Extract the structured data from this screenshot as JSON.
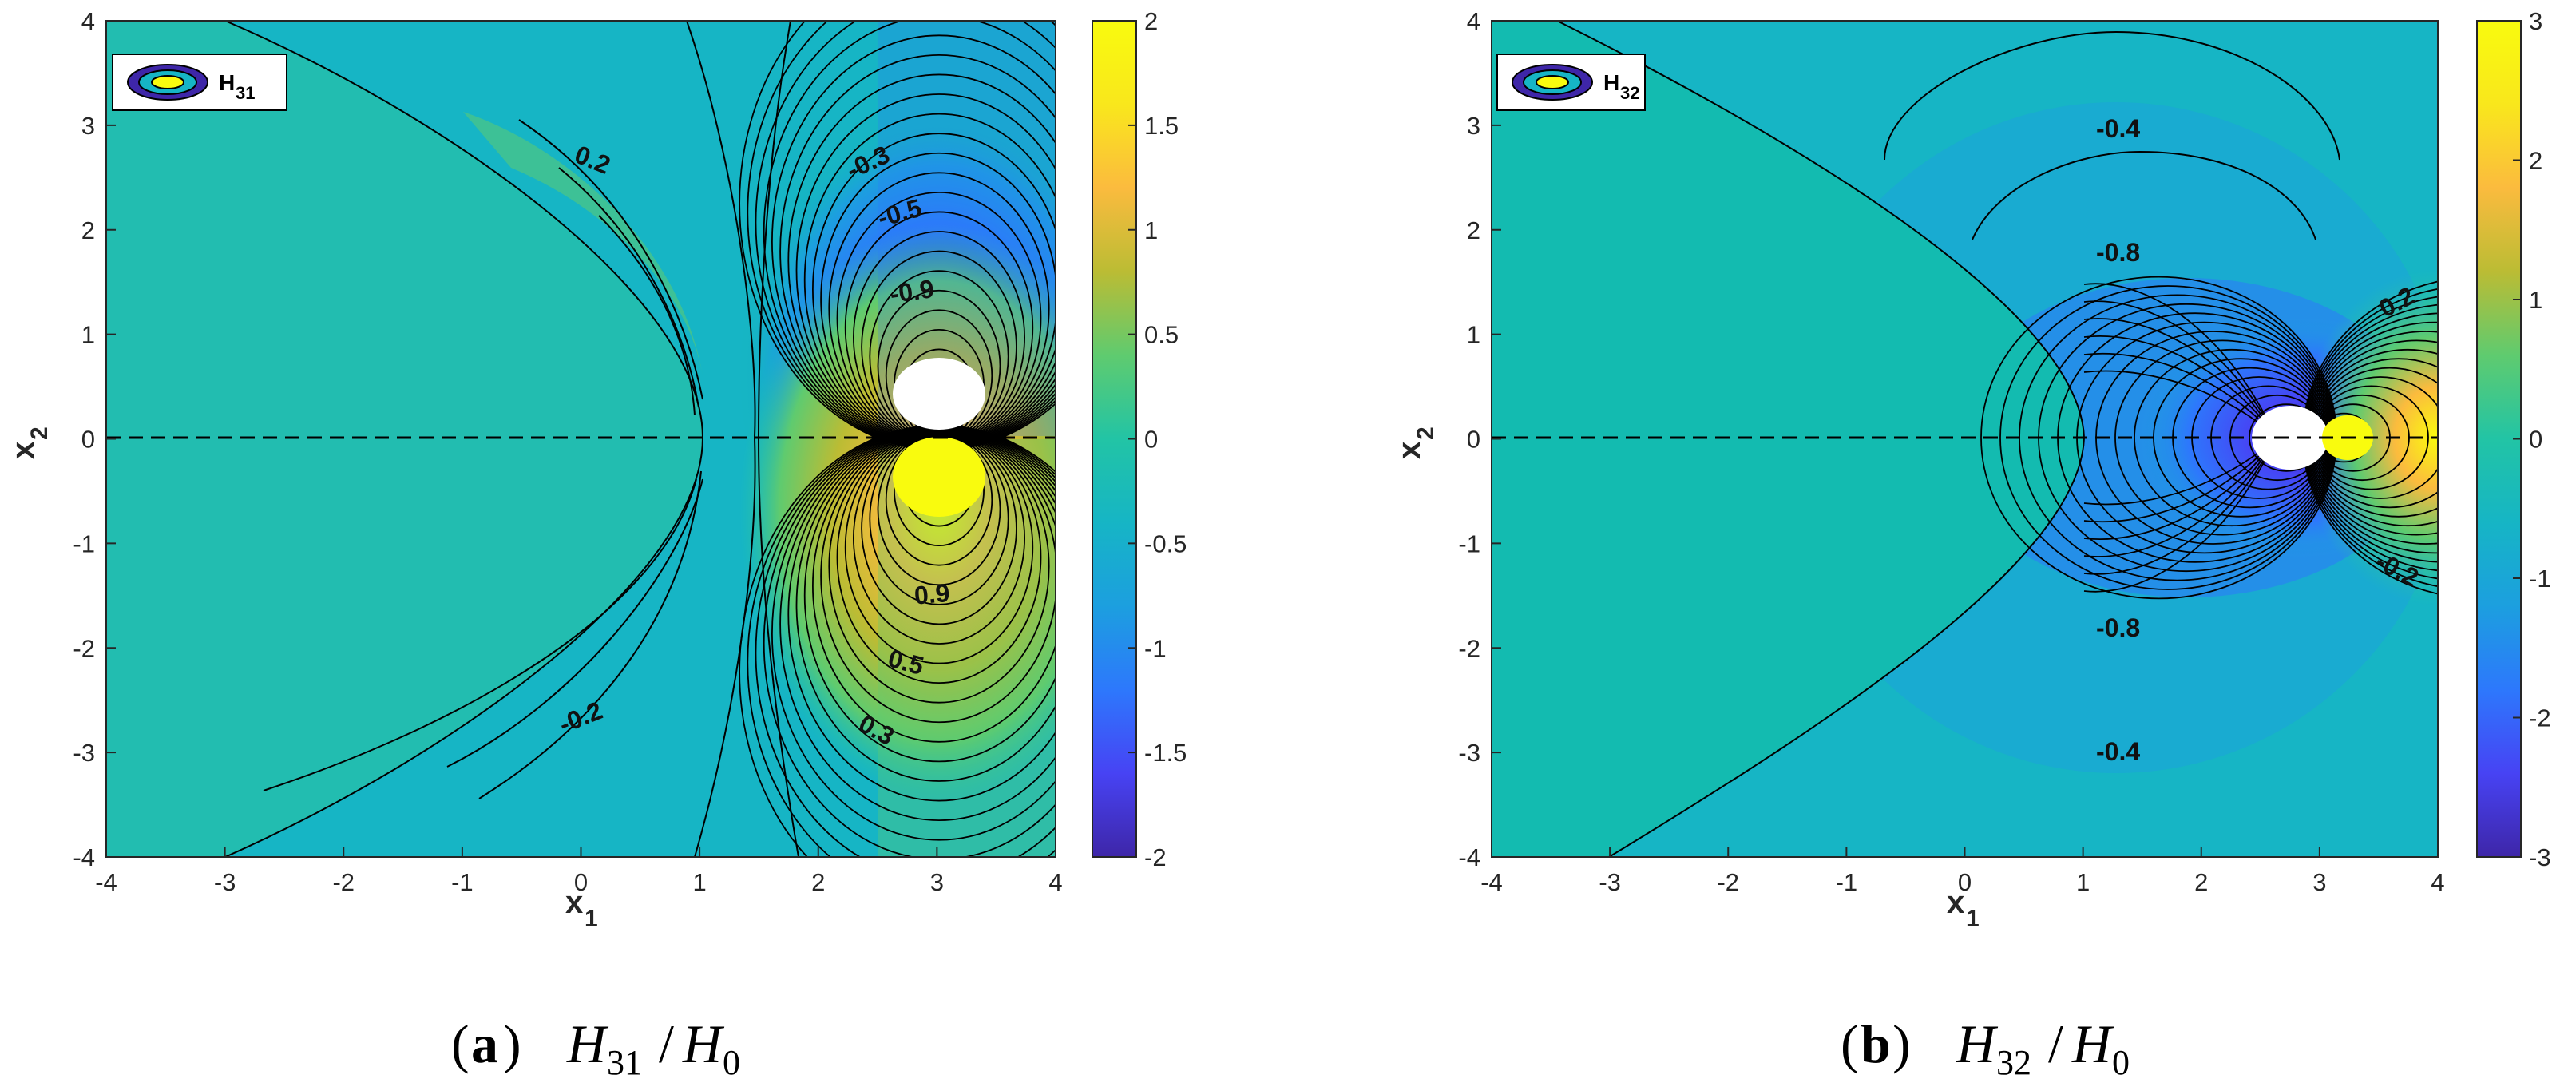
{
  "colors": {
    "parula": [
      "#3e26a8",
      "#4743f4",
      "#2d78fc",
      "#1c9fdf",
      "#16b5c5",
      "#22c4a5",
      "#5fcb6f",
      "#bbbc34",
      "#fbbb3e",
      "#f9e71c",
      "#f9fb0e"
    ],
    "background": "#11b8b8",
    "contour_line": "#000000",
    "white_lobe": "#ffffff",
    "yellow_lobe": "#f9fb0e",
    "dashed_axis": "#000000"
  },
  "panels": [
    {
      "id": "a",
      "legend_label": "H",
      "legend_sub": "31",
      "caption_letter": "a",
      "caption_num": "H",
      "caption_num_sub": "31",
      "caption_den": "H",
      "caption_den_sub": "0",
      "colorbar_ticks": [
        "2",
        "1.5",
        "1",
        "0.5",
        "0",
        "-0.5",
        "-1",
        "-1.5",
        "-2"
      ],
      "contour_labels": [
        "0.2",
        "-0.3",
        "-0.5",
        "-0.9",
        "0.9",
        "0.5",
        "0.3",
        "-0.2"
      ]
    },
    {
      "id": "b",
      "legend_label": "H",
      "legend_sub": "32",
      "caption_letter": "b",
      "caption_num": "H",
      "caption_num_sub": "32",
      "caption_den": "H",
      "caption_den_sub": "0",
      "colorbar_ticks": [
        "3",
        "2",
        "1",
        "0",
        "-1",
        "-2",
        "-3"
      ],
      "contour_labels": [
        "-0.4",
        "-0.8",
        "0.2",
        "-0.2",
        "-0.8",
        "-0.4"
      ]
    }
  ],
  "chart_data": [
    {
      "type": "heatmap",
      "title": "",
      "xlabel": "x1",
      "ylabel": "x2",
      "xlim": [
        -4,
        4
      ],
      "ylim": [
        -4,
        4
      ],
      "xticks": [
        "-4",
        "-3",
        "-2",
        "-1",
        "0",
        "1",
        "2",
        "3",
        "4"
      ],
      "yticks": [
        "4",
        "3",
        "2",
        "1",
        "0",
        "-1",
        "-2",
        "-3",
        "-4"
      ],
      "colorbar_range": [
        -2,
        2
      ],
      "legend_placement": "top-left",
      "legend": "H31",
      "contour_labels": [
        0.2,
        -0.3,
        -0.5,
        -0.9,
        0.9,
        0.5,
        0.3,
        -0.2
      ],
      "dashed_line_y": 0,
      "crack_tip_x": 1,
      "dipole_center_x": 3
    },
    {
      "type": "heatmap",
      "title": "",
      "xlabel": "x1",
      "ylabel": "x2",
      "xlim": [
        -4,
        4
      ],
      "ylim": [
        -4,
        4
      ],
      "xticks": [
        "-4",
        "-3",
        "-2",
        "-1",
        "0",
        "1",
        "2",
        "3",
        "4"
      ],
      "yticks": [
        "4",
        "3",
        "2",
        "1",
        "0",
        "-1",
        "-2",
        "-3",
        "-4"
      ],
      "colorbar_range": [
        -3,
        3
      ],
      "legend_placement": "top-left",
      "legend": "H32",
      "contour_labels": [
        -0.4,
        -0.8,
        0.2,
        -0.2,
        -0.8,
        -0.4
      ],
      "dashed_line_y": 0,
      "crack_tip_x": 1,
      "dipole_center_x": 3
    }
  ]
}
